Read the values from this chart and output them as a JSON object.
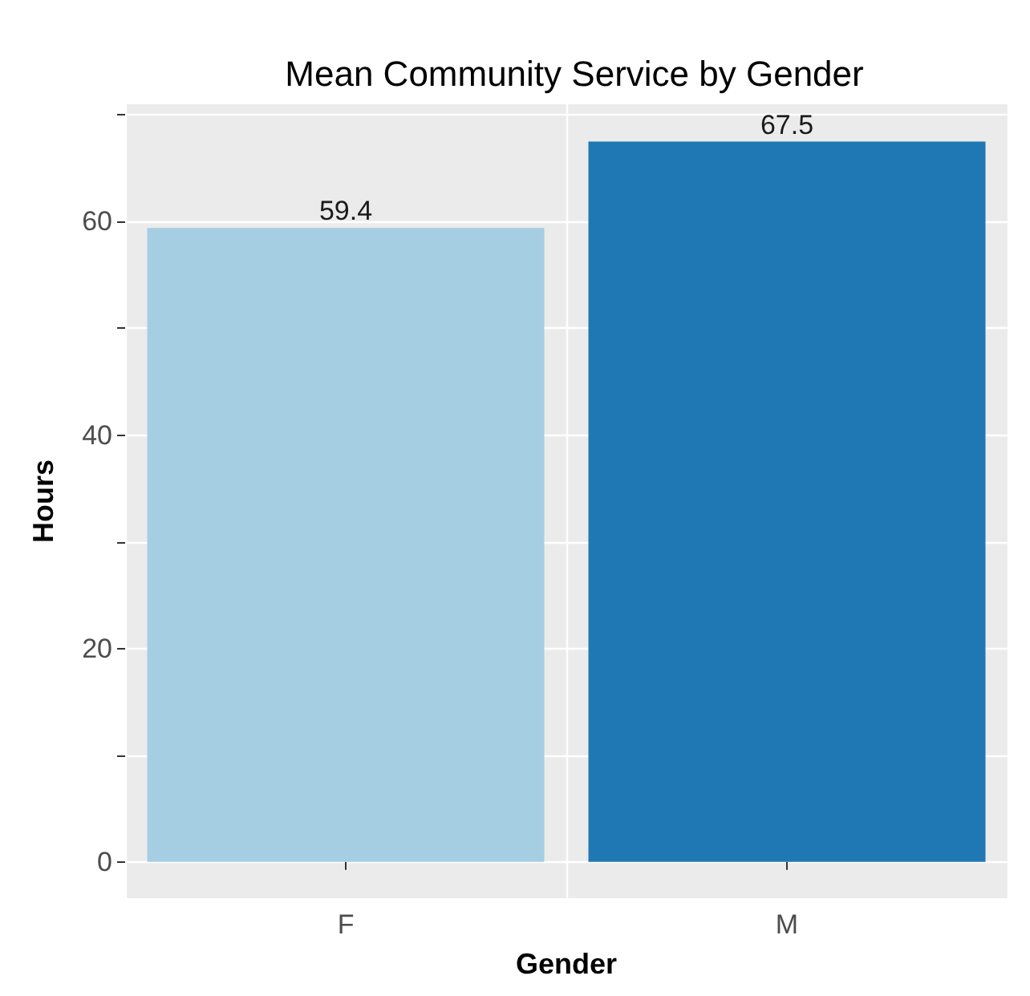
{
  "chart_data": {
    "type": "bar",
    "title": "Mean Community Service by Gender",
    "xlabel": "Gender",
    "ylabel": "Hours",
    "categories": [
      "F",
      "M"
    ],
    "values": [
      59.4,
      67.5
    ],
    "colors": [
      "#a6cee3",
      "#1f78b4"
    ],
    "ylim": [
      -3.4,
      71
    ],
    "yticks": [
      0,
      {
        "value": 10,
        "label": null
      },
      20,
      {
        "value": 30,
        "label": null
      },
      40,
      {
        "value": 50,
        "label": null
      },
      60,
      {
        "value": 70,
        "label": null
      }
    ],
    "grid": true,
    "data_labels": true
  }
}
